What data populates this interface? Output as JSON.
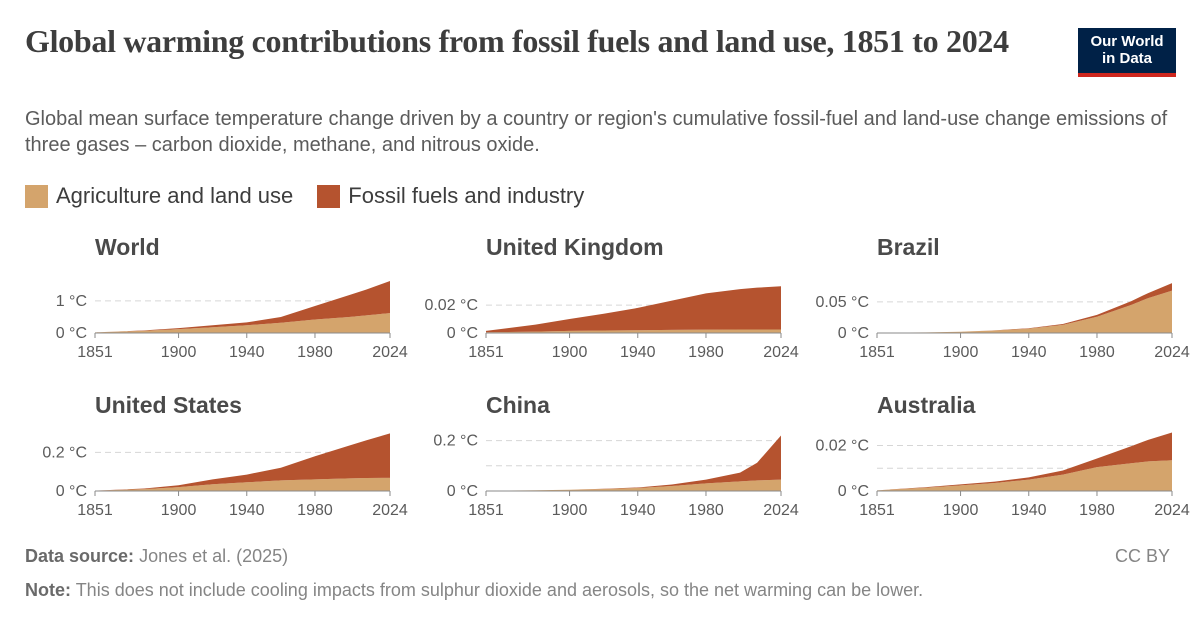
{
  "header": {
    "title": "Global warming contributions from fossil fuels and land use, 1851 to 2024",
    "subtitle": "Global mean surface temperature change driven by a country or region's cumulative fossil-fuel and land-use change emissions of three gases – carbon dioxide, methane, and nitrous oxide.",
    "logo_line1": "Our World",
    "logo_line2": "in Data"
  },
  "legend": [
    {
      "label": "Agriculture and land use",
      "color": "#d4a46c"
    },
    {
      "label": "Fossil fuels and industry",
      "color": "#b5532f"
    }
  ],
  "footer": {
    "source_label": "Data source:",
    "source_text": "Jones et al. (2025)",
    "note_label": "Note:",
    "note_text": "This does not include cooling impacts from sulphur dioxide and aerosols, so the net warming can be lower.",
    "license": "CC BY"
  },
  "chart_data": [
    {
      "type": "area",
      "title": "World",
      "x": [
        1851,
        1880,
        1900,
        1920,
        1940,
        1960,
        1980,
        2000,
        2010,
        2024
      ],
      "xticks": [
        "1851",
        "1900",
        "1940",
        "1980",
        "2024"
      ],
      "yticks": [
        {
          "value": 0,
          "label": "0 °C"
        },
        {
          "value": 1,
          "label": "1 °C"
        }
      ],
      "ylim": [
        0,
        1.65
      ],
      "series": [
        {
          "name": "Agriculture and land use",
          "values": [
            0.02,
            0.07,
            0.12,
            0.18,
            0.24,
            0.32,
            0.42,
            0.5,
            0.55,
            0.62
          ]
        },
        {
          "name": "Fossil fuels and industry",
          "values": [
            0.0,
            0.01,
            0.03,
            0.06,
            0.09,
            0.18,
            0.42,
            0.68,
            0.8,
            1.0
          ]
        }
      ]
    },
    {
      "type": "area",
      "title": "United Kingdom",
      "x": [
        1851,
        1880,
        1900,
        1920,
        1940,
        1960,
        1980,
        2000,
        2010,
        2024
      ],
      "xticks": [
        "1851",
        "1900",
        "1940",
        "1980",
        "2024"
      ],
      "yticks": [
        {
          "value": 0,
          "label": "0 °C"
        },
        {
          "value": 0.02,
          "label": "0.02 °C"
        }
      ],
      "ylim": [
        0,
        0.038
      ],
      "series": [
        {
          "name": "Agriculture and land use",
          "values": [
            0.0005,
            0.001,
            0.0015,
            0.0018,
            0.002,
            0.0022,
            0.0024,
            0.0025,
            0.0025,
            0.0025
          ]
        },
        {
          "name": "Fossil fuels and industry",
          "values": [
            0.001,
            0.005,
            0.0085,
            0.012,
            0.016,
            0.021,
            0.026,
            0.029,
            0.03,
            0.031
          ]
        }
      ]
    },
    {
      "type": "area",
      "title": "Brazil",
      "x": [
        1851,
        1880,
        1900,
        1920,
        1940,
        1960,
        1980,
        2000,
        2010,
        2024
      ],
      "xticks": [
        "1851",
        "1900",
        "1940",
        "1980",
        "2024"
      ],
      "yticks": [
        {
          "value": 0,
          "label": "0 °C"
        },
        {
          "value": 0.05,
          "label": "0.05 °C"
        }
      ],
      "ylim": [
        0,
        0.085
      ],
      "series": [
        {
          "name": "Agriculture and land use",
          "values": [
            0.0005,
            0.001,
            0.002,
            0.004,
            0.007,
            0.013,
            0.026,
            0.045,
            0.056,
            0.068
          ]
        },
        {
          "name": "Fossil fuels and industry",
          "values": [
            0.0,
            0.0,
            0.0,
            0.0003,
            0.0007,
            0.0015,
            0.003,
            0.006,
            0.008,
            0.012
          ]
        }
      ]
    },
    {
      "type": "area",
      "title": "United States",
      "x": [
        1851,
        1880,
        1900,
        1920,
        1940,
        1960,
        1980,
        2000,
        2010,
        2024
      ],
      "xticks": [
        "1851",
        "1900",
        "1940",
        "1980",
        "2024"
      ],
      "yticks": [
        {
          "value": 0,
          "label": "0 °C"
        },
        {
          "value": 0.2,
          "label": "0.2 °C"
        }
      ],
      "ylim": [
        0,
        0.3
      ],
      "series": [
        {
          "name": "Agriculture and land use",
          "values": [
            0.002,
            0.01,
            0.02,
            0.035,
            0.045,
            0.055,
            0.06,
            0.065,
            0.067,
            0.068
          ]
        },
        {
          "name": "Fossil fuels and industry",
          "values": [
            0.0,
            0.003,
            0.01,
            0.025,
            0.04,
            0.065,
            0.12,
            0.17,
            0.195,
            0.23
          ]
        }
      ]
    },
    {
      "type": "area",
      "title": "China",
      "x": [
        1851,
        1880,
        1900,
        1920,
        1940,
        1960,
        1980,
        2000,
        2010,
        2024
      ],
      "xticks": [
        "1851",
        "1900",
        "1940",
        "1980",
        "2024"
      ],
      "yticks": [
        {
          "value": 0,
          "label": "0 °C"
        },
        {
          "value": 0.1,
          "label": ""
        },
        {
          "value": 0.2,
          "label": "0.2 °C"
        }
      ],
      "ylim": [
        0,
        0.23
      ],
      "series": [
        {
          "name": "Agriculture and land use",
          "values": [
            0.001,
            0.003,
            0.005,
            0.008,
            0.012,
            0.02,
            0.03,
            0.038,
            0.042,
            0.045
          ]
        },
        {
          "name": "Fossil fuels and industry",
          "values": [
            0.0,
            0.0,
            0.0,
            0.001,
            0.002,
            0.006,
            0.015,
            0.035,
            0.07,
            0.175
          ]
        }
      ]
    },
    {
      "type": "area",
      "title": "Australia",
      "x": [
        1851,
        1880,
        1900,
        1920,
        1940,
        1960,
        1980,
        2000,
        2010,
        2024
      ],
      "xticks": [
        "1851",
        "1900",
        "1940",
        "1980",
        "2024"
      ],
      "yticks": [
        {
          "value": 0,
          "label": "0 °C"
        },
        {
          "value": 0.01,
          "label": ""
        },
        {
          "value": 0.02,
          "label": "0.02 °C"
        }
      ],
      "ylim": [
        0,
        0.0255
      ],
      "series": [
        {
          "name": "Agriculture and land use",
          "values": [
            0.0003,
            0.0015,
            0.0025,
            0.0035,
            0.005,
            0.0072,
            0.0105,
            0.0122,
            0.013,
            0.0135
          ]
        },
        {
          "name": "Fossil fuels and industry",
          "values": [
            0.0,
            0.0002,
            0.0004,
            0.0006,
            0.001,
            0.0018,
            0.0038,
            0.0075,
            0.0095,
            0.0122
          ]
        }
      ]
    }
  ]
}
